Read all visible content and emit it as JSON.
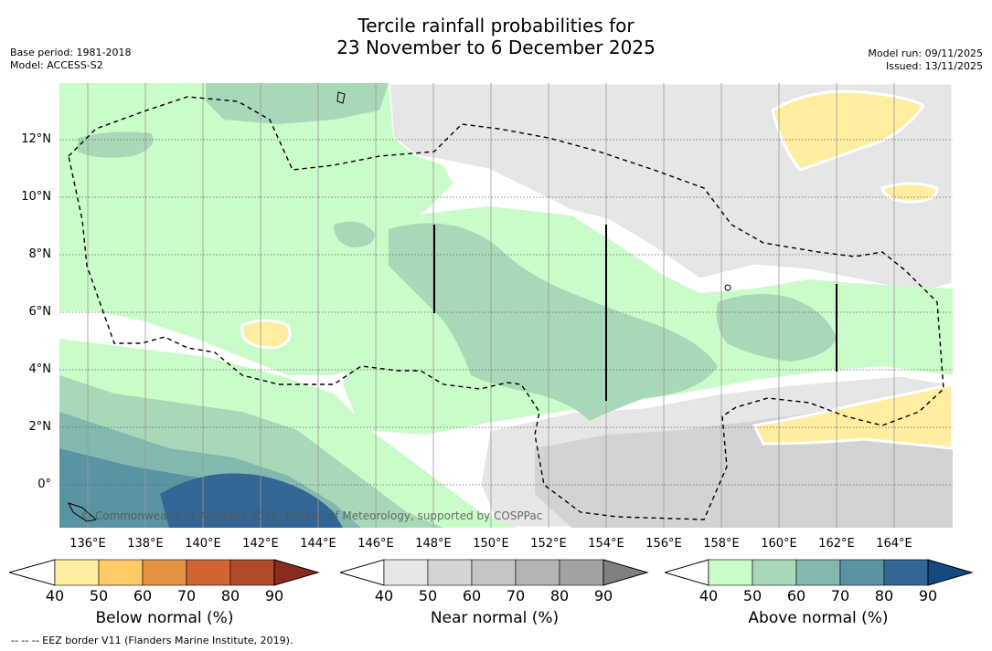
{
  "title_line1": "Tercile rainfall probabilities for",
  "title_line2": "23 November to 6 December 2025",
  "base_period": "Base period: 1981-2018",
  "model": "Model: ACCESS-S2",
  "model_run": "Model run: 09/11/2025",
  "issued": "Issued: 13/11/2025",
  "lat_labels": [
    "12°N",
    "10°N",
    "8°N",
    "6°N",
    "4°N",
    "2°N",
    "0°"
  ],
  "lon_labels": [
    "136°E",
    "138°E",
    "140°E",
    "142°E",
    "144°E",
    "146°E",
    "148°E",
    "150°E",
    "152°E",
    "154°E",
    "156°E",
    "158°E",
    "160°E",
    "162°E",
    "164°E"
  ],
  "credit": "© Commonwealth of Australia 2025, Bureau of Meteorology, supported by COSPPac",
  "colorbars": {
    "below": {
      "title": "Below normal (%)",
      "ticks": [
        "40",
        "50",
        "60",
        "70",
        "80",
        "90"
      ],
      "colors": [
        "#ffeea0",
        "#fdca68",
        "#e59244",
        "#d06533",
        "#b04a28",
        "#8a2b1e"
      ]
    },
    "near": {
      "title": "Near normal (%)",
      "ticks": [
        "40",
        "50",
        "60",
        "70",
        "80",
        "90"
      ],
      "colors": [
        "#e6e6e6",
        "#d5d5d5",
        "#c5c5c5",
        "#b3b3b3",
        "#a2a2a2",
        "#808080"
      ]
    },
    "above": {
      "title": "Above normal (%)",
      "ticks": [
        "40",
        "50",
        "60",
        "70",
        "80",
        "90"
      ],
      "colors": [
        "#c9fcc8",
        "#a8d8b8",
        "#82b8ae",
        "#5a94a2",
        "#336694",
        "#144a80"
      ]
    }
  },
  "footnote": "--  --  -- EEZ border V11 (Flanders Marine Institute, 2019)."
}
